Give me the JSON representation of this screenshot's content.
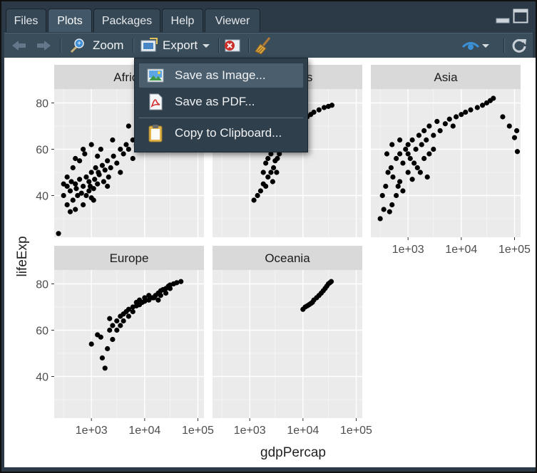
{
  "tabs": [
    {
      "label": "Files"
    },
    {
      "label": "Plots"
    },
    {
      "label": "Packages"
    },
    {
      "label": "Help"
    },
    {
      "label": "Viewer"
    }
  ],
  "toolbar": {
    "zoom_label": "Zoom",
    "export_label": "Export"
  },
  "export_menu": {
    "items": [
      {
        "label": "Save as Image...",
        "icon": "image-icon"
      },
      {
        "label": "Save as PDF...",
        "icon": "pdf-icon"
      },
      {
        "label": "Copy to Clipboard...",
        "icon": "clipboard-icon"
      }
    ]
  },
  "chart_data": {
    "type": "scatter",
    "facets": [
      "Africa",
      "Americas",
      "Asia",
      "Europe",
      "Oceania"
    ],
    "xlabel": "gdpPercap",
    "ylabel": "lifeExp",
    "x_scale": "log10",
    "x_ticks": [
      "1e+03",
      "1e+04",
      "1e+05"
    ],
    "y_ticks": [
      "40",
      "60",
      "80"
    ],
    "xlim": [
      200,
      130000
    ],
    "ylim": [
      22,
      86
    ],
    "point_color": "#000000",
    "panel_bg": "#ebebeb",
    "strip_bg": "#d9d9d9",
    "grid": true,
    "series": [
      {
        "facet": "Africa",
        "points": [
          [
            241,
            23.6
          ],
          [
            300,
            40
          ],
          [
            350,
            36
          ],
          [
            400,
            42
          ],
          [
            450,
            38
          ],
          [
            500,
            45
          ],
          [
            550,
            40
          ],
          [
            600,
            47
          ],
          [
            700,
            44
          ],
          [
            800,
            48
          ],
          [
            900,
            46
          ],
          [
            1000,
            50
          ],
          [
            1100,
            43
          ],
          [
            1200,
            52
          ],
          [
            1400,
            49
          ],
          [
            1600,
            53
          ],
          [
            1800,
            51
          ],
          [
            2000,
            55
          ],
          [
            2300,
            52
          ],
          [
            2600,
            57
          ],
          [
            3000,
            54
          ],
          [
            3500,
            60
          ],
          [
            4000,
            58
          ],
          [
            4500,
            62
          ],
          [
            5000,
            60
          ],
          [
            6000,
            64
          ],
          [
            7000,
            62
          ],
          [
            8000,
            68
          ],
          [
            9000,
            70
          ],
          [
            10000,
            72
          ],
          [
            12000,
            74
          ],
          [
            350,
            48
          ],
          [
            450,
            52
          ],
          [
            600,
            55
          ],
          [
            750,
            58
          ],
          [
            900,
            42
          ],
          [
            1100,
            38
          ],
          [
            1300,
            45
          ],
          [
            1500,
            60
          ],
          [
            2500,
            64
          ],
          [
            3500,
            50
          ],
          [
            5000,
            70
          ],
          [
            400,
            33
          ],
          [
            500,
            34
          ],
          [
            700,
            36
          ],
          [
            1000,
            39
          ],
          [
            2000,
            44
          ],
          [
            6000,
            56
          ],
          [
            8000,
            60
          ],
          [
            500,
            56
          ],
          [
            700,
            60
          ],
          [
            1000,
            62
          ],
          [
            1300,
            57
          ],
          [
            300,
            45
          ],
          [
            350,
            44
          ],
          [
            420,
            46
          ],
          [
            520,
            43
          ],
          [
            650,
            41
          ],
          [
            800,
            40
          ],
          [
            950,
            44
          ],
          [
            1150,
            47
          ],
          [
            1350,
            50
          ],
          [
            1700,
            46
          ],
          [
            2100,
            48
          ]
        ]
      },
      {
        "facet": "Americas",
        "points": [
          [
            1200,
            38
          ],
          [
            1400,
            40
          ],
          [
            1600,
            42
          ],
          [
            1800,
            45
          ],
          [
            2000,
            44
          ],
          [
            2200,
            48
          ],
          [
            2500,
            50
          ],
          [
            2800,
            52
          ],
          [
            3000,
            55
          ],
          [
            3300,
            56
          ],
          [
            3600,
            58
          ],
          [
            4000,
            60
          ],
          [
            4500,
            62
          ],
          [
            5000,
            64
          ],
          [
            5500,
            66
          ],
          [
            6000,
            68
          ],
          [
            7000,
            69
          ],
          [
            8000,
            70
          ],
          [
            9000,
            72
          ],
          [
            10000,
            73
          ],
          [
            12000,
            74
          ],
          [
            14000,
            75
          ],
          [
            16000,
            76
          ],
          [
            20000,
            77
          ],
          [
            25000,
            78
          ],
          [
            30000,
            78.5
          ],
          [
            35000,
            79
          ],
          [
            2000,
            54
          ],
          [
            3000,
            60
          ],
          [
            4000,
            64
          ],
          [
            5000,
            68
          ],
          [
            2500,
            58
          ],
          [
            3500,
            62
          ],
          [
            4500,
            66
          ],
          [
            1800,
            50
          ],
          [
            2200,
            56
          ],
          [
            2700,
            46
          ],
          [
            3200,
            50
          ]
        ]
      },
      {
        "facet": "Asia",
        "points": [
          [
            300,
            30
          ],
          [
            330,
            40
          ],
          [
            380,
            44
          ],
          [
            420,
            50
          ],
          [
            480,
            52
          ],
          [
            520,
            48
          ],
          [
            600,
            56
          ],
          [
            650,
            44
          ],
          [
            700,
            58
          ],
          [
            800,
            54
          ],
          [
            900,
            60
          ],
          [
            1000,
            62
          ],
          [
            1100,
            56
          ],
          [
            1200,
            64
          ],
          [
            1400,
            60
          ],
          [
            1600,
            66
          ],
          [
            1800,
            62
          ],
          [
            2000,
            68
          ],
          [
            2200,
            64
          ],
          [
            2500,
            70
          ],
          [
            3000,
            66
          ],
          [
            3500,
            72
          ],
          [
            4000,
            68
          ],
          [
            5000,
            71
          ],
          [
            6000,
            73
          ],
          [
            7000,
            70
          ],
          [
            8000,
            74
          ],
          [
            10000,
            75
          ],
          [
            12000,
            76
          ],
          [
            15000,
            77
          ],
          [
            20000,
            78
          ],
          [
            25000,
            79
          ],
          [
            30000,
            80
          ],
          [
            35000,
            81
          ],
          [
            40000,
            82
          ],
          [
            60000,
            74
          ],
          [
            80000,
            70
          ],
          [
            100000,
            65
          ],
          [
            113000,
            59
          ],
          [
            110000,
            68
          ],
          [
            500,
            36
          ],
          [
            600,
            40
          ],
          [
            700,
            46
          ],
          [
            800,
            42
          ],
          [
            1000,
            50
          ],
          [
            1200,
            47
          ],
          [
            1500,
            52
          ],
          [
            2000,
            56
          ],
          [
            2500,
            58
          ],
          [
            3000,
            60
          ],
          [
            400,
            58
          ],
          [
            500,
            62
          ],
          [
            700,
            64
          ],
          [
            1000,
            58
          ],
          [
            1300,
            54
          ],
          [
            1700,
            50
          ],
          [
            2300,
            48
          ],
          [
            350,
            34
          ],
          [
            450,
            33
          ]
        ]
      },
      {
        "facet": "Europe",
        "points": [
          [
            1000,
            54
          ],
          [
            1300,
            58
          ],
          [
            1600,
            48
          ],
          [
            1800,
            43.6
          ],
          [
            2000,
            52
          ],
          [
            2200,
            60
          ],
          [
            2500,
            62
          ],
          [
            3000,
            64
          ],
          [
            3500,
            66
          ],
          [
            4000,
            67
          ],
          [
            4500,
            68
          ],
          [
            5000,
            69
          ],
          [
            6000,
            70
          ],
          [
            7000,
            70.5
          ],
          [
            8000,
            71
          ],
          [
            9000,
            72
          ],
          [
            10000,
            72.5
          ],
          [
            12000,
            73
          ],
          [
            14000,
            74
          ],
          [
            16000,
            75
          ],
          [
            18000,
            76
          ],
          [
            20000,
            77
          ],
          [
            22000,
            77.5
          ],
          [
            25000,
            78
          ],
          [
            28000,
            79
          ],
          [
            30000,
            79.5
          ],
          [
            35000,
            80
          ],
          [
            40000,
            80.5
          ],
          [
            48000,
            81
          ],
          [
            3000,
            60
          ],
          [
            4000,
            64
          ],
          [
            5000,
            66
          ],
          [
            6000,
            68
          ],
          [
            7000,
            72
          ],
          [
            8000,
            73
          ],
          [
            10000,
            74
          ],
          [
            12000,
            75
          ],
          [
            15000,
            74
          ],
          [
            18000,
            73
          ],
          [
            20000,
            75
          ],
          [
            25000,
            76
          ],
          [
            30000,
            78
          ],
          [
            2500,
            56
          ],
          [
            3500,
            62
          ],
          [
            1500,
            57
          ],
          [
            2200,
            65
          ]
        ]
      },
      {
        "facet": "Oceania",
        "points": [
          [
            10000,
            69
          ],
          [
            11000,
            70
          ],
          [
            12000,
            70.5
          ],
          [
            13000,
            71
          ],
          [
            14000,
            71.5
          ],
          [
            15000,
            72
          ],
          [
            16000,
            73
          ],
          [
            18000,
            74
          ],
          [
            20000,
            75
          ],
          [
            22000,
            76
          ],
          [
            24000,
            77
          ],
          [
            26000,
            78
          ],
          [
            28000,
            79
          ],
          [
            30000,
            80
          ],
          [
            32000,
            80.5
          ],
          [
            34000,
            81
          ]
        ]
      }
    ]
  }
}
